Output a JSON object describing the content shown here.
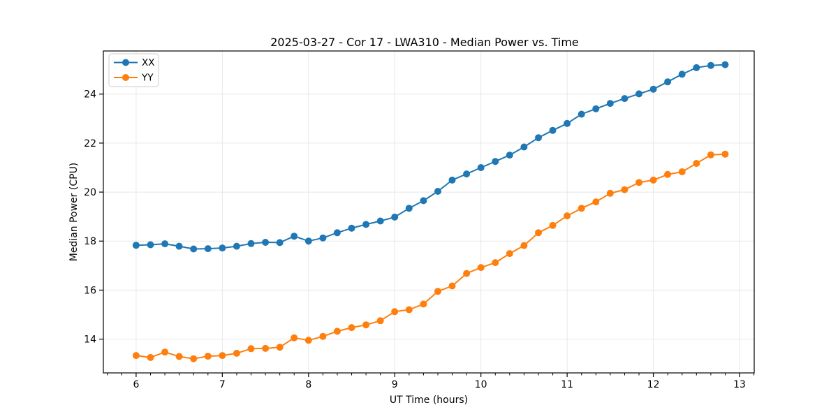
{
  "chart_data": {
    "type": "line",
    "title": "2025-03-27 - Cor 17 - LWA310 - Median Power vs. Time",
    "xlabel": "UT Time (hours)",
    "ylabel": "Median Power (CPU)",
    "xlim": [
      5.62,
      13.17
    ],
    "ylim": [
      12.62,
      25.76
    ],
    "xticks": [
      6,
      7,
      8,
      9,
      10,
      11,
      12,
      13
    ],
    "yticks": [
      14,
      16,
      18,
      20,
      22,
      24
    ],
    "x_minor_step": 0.16667,
    "grid": true,
    "legend": {
      "position": "upper left"
    },
    "x": [
      6.0,
      6.1667,
      6.3333,
      6.5,
      6.6667,
      6.8333,
      7.0,
      7.1667,
      7.3333,
      7.5,
      7.6667,
      7.8333,
      8.0,
      8.1667,
      8.3333,
      8.5,
      8.6667,
      8.8333,
      9.0,
      9.1667,
      9.3333,
      9.5,
      9.6667,
      9.8333,
      10.0,
      10.1667,
      10.3333,
      10.5,
      10.6667,
      10.8333,
      11.0,
      11.1667,
      11.3333,
      11.5,
      11.6667,
      11.8333,
      12.0,
      12.1667,
      12.3333,
      12.5,
      12.6667,
      12.8333
    ],
    "series": [
      {
        "name": "XX",
        "color": "#1f77b4",
        "values": [
          17.83,
          17.85,
          17.89,
          17.79,
          17.68,
          17.69,
          17.72,
          17.79,
          17.9,
          17.95,
          17.94,
          18.2,
          18.0,
          18.13,
          18.34,
          18.53,
          18.68,
          18.82,
          18.98,
          19.34,
          19.65,
          20.03,
          20.49,
          20.74,
          21.0,
          21.25,
          21.51,
          21.84,
          22.22,
          22.52,
          22.8,
          23.18,
          23.4,
          23.62,
          23.82,
          24.01,
          24.2,
          24.5,
          24.81,
          25.08,
          25.17,
          25.2
        ]
      },
      {
        "name": "YY",
        "color": "#ff7f0e",
        "values": [
          13.33,
          13.25,
          13.47,
          13.29,
          13.2,
          13.3,
          13.33,
          13.42,
          13.61,
          13.62,
          13.67,
          14.05,
          13.95,
          14.11,
          14.32,
          14.47,
          14.58,
          14.75,
          15.12,
          15.2,
          15.43,
          15.95,
          16.17,
          16.68,
          16.92,
          17.12,
          17.49,
          17.82,
          18.34,
          18.64,
          19.03,
          19.34,
          19.6,
          19.95,
          20.1,
          20.39,
          20.49,
          20.72,
          20.83,
          21.17,
          21.52,
          21.55
        ]
      }
    ]
  }
}
